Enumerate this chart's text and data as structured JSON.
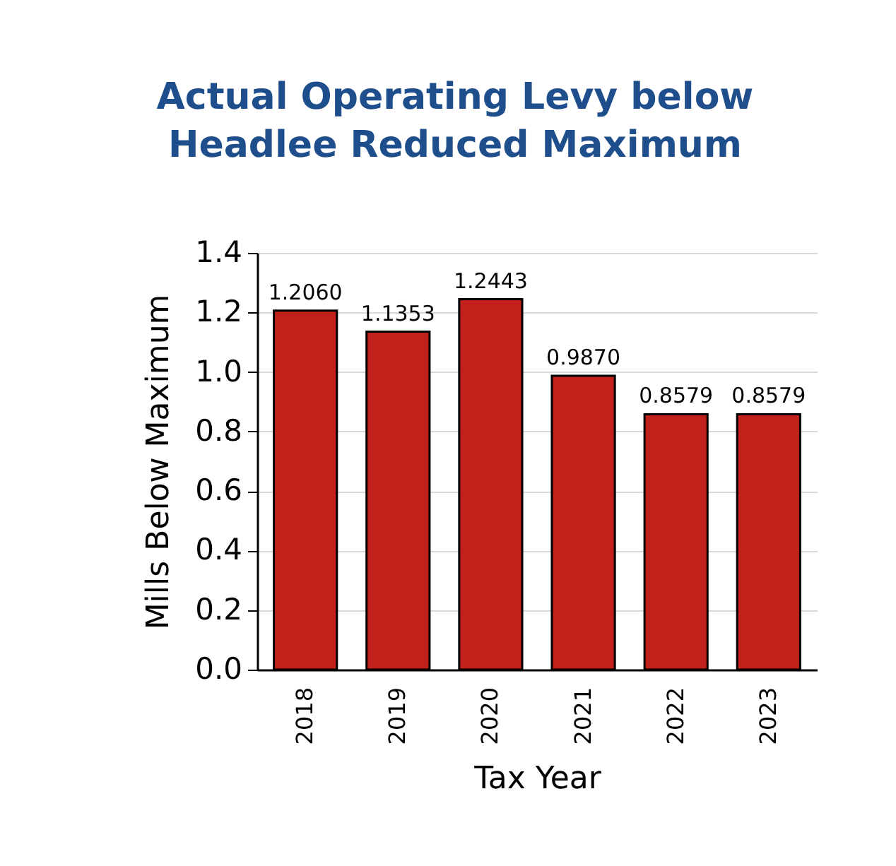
{
  "chart_data": {
    "type": "bar",
    "title": "Actual Operating Levy below Headlee Reduced Maximum",
    "xlabel": "Tax Year",
    "ylabel": "Mills Below Maximum",
    "categories": [
      "2018",
      "2019",
      "2020",
      "2021",
      "2022",
      "2023"
    ],
    "values": [
      1.206,
      1.1353,
      1.2443,
      0.987,
      0.8579,
      0.8579
    ],
    "value_labels": [
      "1.2060",
      "1.1353",
      "1.2443",
      "0.9870",
      "0.8579",
      "0.8579"
    ],
    "color": "#c0211a",
    "ylim": [
      0,
      1.4
    ],
    "yticks": [
      {
        "value": 0,
        "label": "0.0"
      },
      {
        "value": 0.2,
        "label": "0.2"
      },
      {
        "value": 0.4,
        "label": "0.4"
      },
      {
        "value": 0.6,
        "label": "0.6"
      },
      {
        "value": 0.8,
        "label": "0.8"
      },
      {
        "value": 1,
        "label": "1.0"
      },
      {
        "value": 1.2,
        "label": "1.2"
      },
      {
        "value": 1.4,
        "label": "1.4"
      }
    ],
    "grid": "y"
  }
}
